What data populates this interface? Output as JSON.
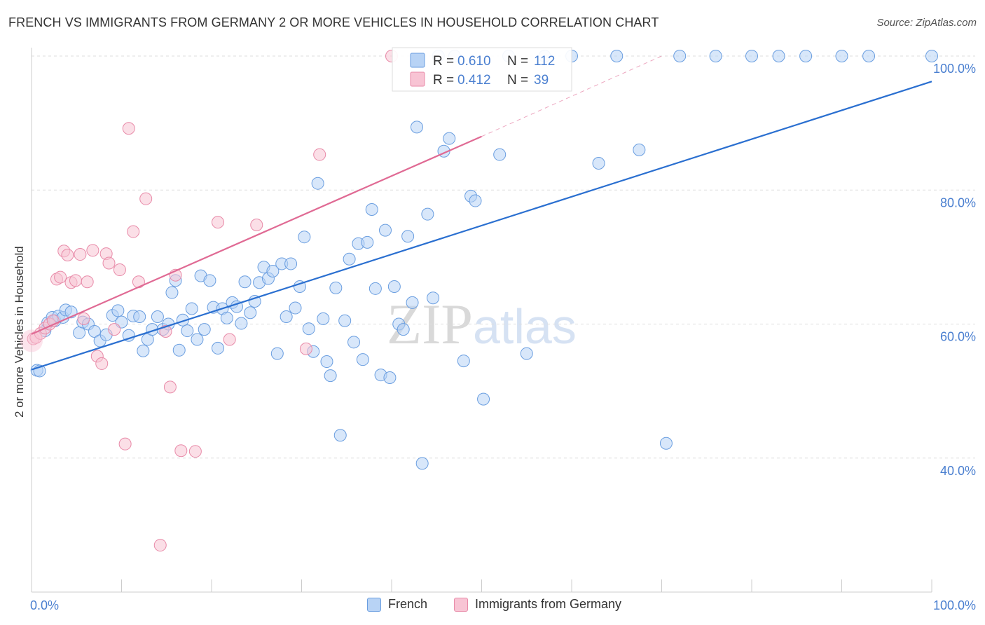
{
  "title": "FRENCH VS IMMIGRANTS FROM GERMANY 2 OR MORE VEHICLES IN HOUSEHOLD CORRELATION CHART",
  "source": "Source: ZipAtlas.com",
  "watermark": "ZIPatlas",
  "colors": {
    "french_fill": "#b8d3f5",
    "french_stroke": "#6a9ee0",
    "french_line": "#2a6fd0",
    "german_fill": "#f8c4d4",
    "german_stroke": "#e88aa8",
    "german_line": "#e06a94",
    "grid": "#dddddd",
    "axis_text": "#4a7fd0"
  },
  "legend_stats": {
    "french": {
      "r_label": "R = ",
      "r_value": "0.610",
      "n_label": "N = ",
      "n_value": "112"
    },
    "german": {
      "r_label": "R = ",
      "r_value": "0.412",
      "n_label": "N = ",
      "n_value": " 39"
    }
  },
  "chart_data": {
    "type": "scatter",
    "xlabel": "",
    "ylabel": "2 or more Vehicles in Household",
    "xlim": [
      0,
      100
    ],
    "ylim": [
      20,
      100
    ],
    "x_tick_labels": [
      "0.0%",
      "100.0%"
    ],
    "y_ticks": [
      40,
      60,
      80,
      100
    ],
    "y_tick_labels": [
      "40.0%",
      "60.0%",
      "80.0%",
      "100.0%"
    ],
    "grid": true,
    "legend_placement": "top-center and bottom",
    "series": [
      {
        "name": "French",
        "R": 0.61,
        "N": 112,
        "trend": {
          "x": [
            0,
            100
          ],
          "y": [
            53.2,
            96.2
          ]
        },
        "points": [
          [
            0.6,
            53.1
          ],
          [
            0.9,
            53.0
          ],
          [
            1.5,
            59.0
          ],
          [
            1.8,
            60.2
          ],
          [
            2.3,
            61.0
          ],
          [
            2.6,
            60.5
          ],
          [
            3.0,
            61.2
          ],
          [
            3.5,
            61.0
          ],
          [
            3.8,
            62.1
          ],
          [
            4.4,
            61.8
          ],
          [
            5.3,
            58.7
          ],
          [
            5.7,
            60.3
          ],
          [
            6.3,
            60.0
          ],
          [
            7.0,
            58.9
          ],
          [
            7.6,
            57.5
          ],
          [
            8.3,
            58.4
          ],
          [
            9.0,
            61.3
          ],
          [
            9.6,
            62.0
          ],
          [
            10.0,
            60.3
          ],
          [
            10.8,
            58.3
          ],
          [
            11.3,
            61.2
          ],
          [
            12.0,
            61.1
          ],
          [
            12.4,
            56.0
          ],
          [
            12.9,
            57.7
          ],
          [
            13.4,
            59.2
          ],
          [
            14.0,
            61.1
          ],
          [
            14.6,
            59.2
          ],
          [
            15.2,
            60.0
          ],
          [
            15.6,
            64.7
          ],
          [
            16.0,
            66.5
          ],
          [
            16.4,
            56.1
          ],
          [
            16.8,
            60.6
          ],
          [
            17.3,
            59.0
          ],
          [
            17.8,
            62.3
          ],
          [
            18.4,
            57.7
          ],
          [
            18.8,
            67.2
          ],
          [
            19.2,
            59.2
          ],
          [
            19.8,
            66.5
          ],
          [
            20.2,
            62.5
          ],
          [
            20.7,
            56.4
          ],
          [
            21.2,
            62.3
          ],
          [
            21.7,
            60.9
          ],
          [
            22.3,
            63.2
          ],
          [
            22.8,
            62.6
          ],
          [
            23.3,
            60.1
          ],
          [
            23.7,
            66.3
          ],
          [
            24.3,
            61.7
          ],
          [
            24.8,
            63.4
          ],
          [
            25.3,
            66.2
          ],
          [
            25.8,
            68.5
          ],
          [
            26.3,
            66.8
          ],
          [
            26.8,
            67.9
          ],
          [
            27.3,
            55.6
          ],
          [
            27.8,
            69.0
          ],
          [
            28.3,
            61.1
          ],
          [
            28.8,
            69.0
          ],
          [
            29.3,
            62.4
          ],
          [
            29.8,
            65.6
          ],
          [
            30.3,
            73.0
          ],
          [
            30.8,
            59.3
          ],
          [
            31.3,
            55.9
          ],
          [
            31.8,
            81.0
          ],
          [
            32.4,
            60.8
          ],
          [
            32.8,
            54.4
          ],
          [
            33.2,
            52.3
          ],
          [
            33.8,
            65.4
          ],
          [
            34.3,
            43.4
          ],
          [
            34.8,
            60.5
          ],
          [
            35.3,
            69.7
          ],
          [
            35.8,
            57.3
          ],
          [
            36.3,
            72.0
          ],
          [
            36.8,
            54.7
          ],
          [
            37.3,
            72.2
          ],
          [
            37.8,
            77.1
          ],
          [
            38.2,
            65.3
          ],
          [
            38.8,
            52.4
          ],
          [
            39.3,
            74.0
          ],
          [
            39.8,
            52.0
          ],
          [
            40.3,
            65.6
          ],
          [
            40.8,
            60.0
          ],
          [
            41.3,
            59.2
          ],
          [
            41.8,
            73.1
          ],
          [
            42.3,
            63.2
          ],
          [
            42.8,
            89.4
          ],
          [
            43.4,
            39.2
          ],
          [
            44.0,
            76.4
          ],
          [
            44.6,
            63.9
          ],
          [
            45.2,
            100.0
          ],
          [
            45.8,
            85.8
          ],
          [
            46.4,
            87.7
          ],
          [
            47.0,
            100.0
          ],
          [
            48.0,
            54.5
          ],
          [
            48.8,
            79.1
          ],
          [
            49.3,
            78.4
          ],
          [
            50.2,
            48.8
          ],
          [
            52.0,
            85.3
          ],
          [
            53.0,
            100.0
          ],
          [
            55.0,
            55.6
          ],
          [
            57.0,
            100.0
          ],
          [
            60.0,
            100.0
          ],
          [
            63.0,
            84.0
          ],
          [
            65.0,
            100.0
          ],
          [
            67.5,
            86.0
          ],
          [
            70.5,
            42.2
          ],
          [
            72.0,
            100.0
          ],
          [
            76.0,
            100.0
          ],
          [
            80.0,
            100.0
          ],
          [
            83.0,
            100.0
          ],
          [
            86.0,
            100.0
          ],
          [
            90.0,
            100.0
          ],
          [
            93.0,
            100.0
          ],
          [
            100.0,
            100.0
          ]
        ]
      },
      {
        "name": "Immigrants from Germany",
        "R": 0.412,
        "N": 39,
        "trend": {
          "x": [
            0,
            50
          ],
          "y": [
            58.5,
            88.0
          ]
        },
        "trend_extension": {
          "x": [
            50,
            70
          ],
          "y": [
            88.0,
            100.0
          ]
        },
        "points": [
          [
            0.2,
            57.8
          ],
          [
            0.5,
            58.0
          ],
          [
            1.0,
            58.6
          ],
          [
            1.5,
            59.4
          ],
          [
            2.0,
            60.0
          ],
          [
            2.4,
            60.5
          ],
          [
            2.8,
            66.7
          ],
          [
            3.2,
            67.0
          ],
          [
            3.6,
            70.9
          ],
          [
            4.0,
            70.3
          ],
          [
            4.4,
            66.2
          ],
          [
            4.9,
            66.5
          ],
          [
            5.4,
            70.4
          ],
          [
            5.8,
            60.8
          ],
          [
            6.2,
            66.3
          ],
          [
            6.8,
            71.0
          ],
          [
            7.3,
            55.2
          ],
          [
            7.8,
            54.1
          ],
          [
            8.3,
            70.5
          ],
          [
            8.6,
            69.1
          ],
          [
            9.2,
            59.2
          ],
          [
            9.8,
            68.1
          ],
          [
            10.4,
            42.1
          ],
          [
            10.8,
            89.2
          ],
          [
            11.3,
            73.8
          ],
          [
            11.9,
            66.3
          ],
          [
            12.7,
            78.7
          ],
          [
            14.3,
            27.0
          ],
          [
            14.9,
            58.9
          ],
          [
            15.4,
            50.6
          ],
          [
            16.0,
            67.3
          ],
          [
            16.6,
            41.1
          ],
          [
            18.2,
            41.0
          ],
          [
            20.7,
            75.2
          ],
          [
            22.0,
            57.7
          ],
          [
            25.0,
            74.8
          ],
          [
            30.5,
            56.3
          ],
          [
            32.0,
            85.3
          ],
          [
            40.0,
            100.0
          ]
        ]
      }
    ]
  },
  "legend_bottom": [
    {
      "label": "French"
    },
    {
      "label": "Immigrants from Germany"
    }
  ]
}
